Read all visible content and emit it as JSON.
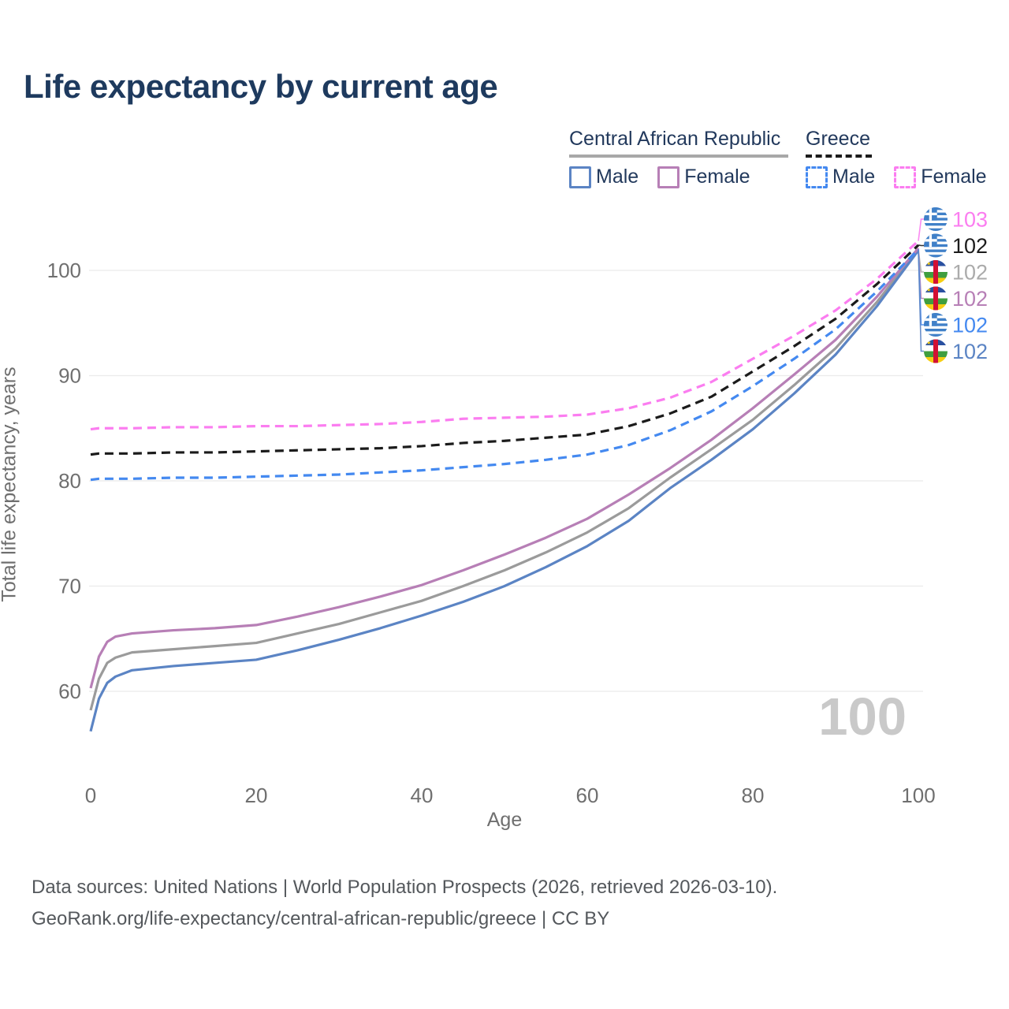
{
  "title": "Life expectancy by current age",
  "watermark": "100",
  "legend": {
    "groups": [
      {
        "country": "Central African Republic",
        "line_style": "solid",
        "underline_color": "#a8a8a8",
        "items": [
          {
            "label": "Male",
            "color": "#5b84c4"
          },
          {
            "label": "Female",
            "color": "#b77fb6"
          }
        ]
      },
      {
        "country": "Greece",
        "line_style": "dashed",
        "underline_color": "#1b1b1b",
        "items": [
          {
            "label": "Male",
            "color": "#4489f0"
          },
          {
            "label": "Female",
            "color": "#fb7df0"
          }
        ]
      }
    ]
  },
  "footer": {
    "line1": "Data sources: United Nations | World Population Prospects (2026, retrieved 2026-03-10).",
    "line2": "GeoRank.org/life-expectancy/central-african-republic/greece | CC BY"
  },
  "chart_data": {
    "type": "line",
    "title": "Life expectancy by current age",
    "xlabel": "Age",
    "ylabel": "Total life expectancy, years",
    "xlim": [
      0,
      100
    ],
    "ylim": [
      54,
      106
    ],
    "x_ticks": [
      0,
      20,
      40,
      60,
      80,
      100
    ],
    "y_ticks": [
      60,
      70,
      80,
      90,
      100
    ],
    "grid": "horizontal",
    "legend_position": "top-right",
    "x": [
      0,
      1,
      2,
      3,
      5,
      10,
      15,
      20,
      25,
      30,
      35,
      40,
      45,
      50,
      55,
      60,
      65,
      70,
      75,
      80,
      85,
      90,
      95,
      100
    ],
    "series": [
      {
        "id": "caf-total",
        "name": "Central African Republic — Total",
        "country": "Central African Republic",
        "sex": "both",
        "style": "solid",
        "color": "#9b9b9b",
        "values": [
          58.2,
          61.2,
          62.7,
          63.2,
          63.7,
          64.0,
          64.3,
          64.6,
          65.5,
          66.4,
          67.5,
          68.6,
          70.0,
          71.5,
          73.2,
          75.1,
          77.4,
          80.3,
          83.0,
          85.8,
          89.1,
          92.6,
          97.0,
          102.0
        ]
      },
      {
        "id": "caf-male",
        "name": "Central African Republic — Male",
        "country": "Central African Republic",
        "sex": "male",
        "style": "solid",
        "color": "#5b84c4",
        "values": [
          56.2,
          59.3,
          60.8,
          61.4,
          62.0,
          62.4,
          62.7,
          63.0,
          63.9,
          64.9,
          66.0,
          67.2,
          68.5,
          70.0,
          71.8,
          73.8,
          76.2,
          79.3,
          82.0,
          84.9,
          88.3,
          92.0,
          96.6,
          101.9
        ]
      },
      {
        "id": "caf-female",
        "name": "Central African Republic — Female",
        "country": "Central African Republic",
        "sex": "female",
        "style": "solid",
        "color": "#b77fb6",
        "values": [
          60.3,
          63.3,
          64.7,
          65.2,
          65.5,
          65.8,
          66.0,
          66.3,
          67.1,
          68.0,
          69.0,
          70.1,
          71.5,
          73.0,
          74.6,
          76.4,
          78.7,
          81.2,
          83.9,
          86.9,
          90.1,
          93.4,
          97.5,
          102.1
        ]
      },
      {
        "id": "grc-male",
        "name": "Greece — Male",
        "country": "Greece",
        "sex": "male",
        "style": "dashed",
        "color": "#4489f0",
        "values": [
          80.1,
          80.2,
          80.2,
          80.2,
          80.2,
          80.3,
          80.3,
          80.4,
          80.5,
          80.6,
          80.8,
          81.0,
          81.3,
          81.6,
          82.0,
          82.5,
          83.4,
          84.8,
          86.6,
          89.0,
          91.6,
          94.4,
          98.0,
          102.0
        ]
      },
      {
        "id": "grc-total",
        "name": "Greece — Total",
        "country": "Greece",
        "sex": "both",
        "style": "dashed",
        "color": "#1b1b1b",
        "values": [
          82.5,
          82.6,
          82.6,
          82.6,
          82.6,
          82.7,
          82.7,
          82.8,
          82.9,
          83.0,
          83.1,
          83.3,
          83.6,
          83.8,
          84.1,
          84.4,
          85.2,
          86.4,
          88.0,
          90.4,
          92.8,
          95.4,
          98.7,
          102.4
        ]
      },
      {
        "id": "grc-female",
        "name": "Greece — Female",
        "country": "Greece",
        "sex": "female",
        "style": "dashed",
        "color": "#fb7df0",
        "values": [
          84.9,
          85.0,
          85.0,
          85.0,
          85.0,
          85.1,
          85.1,
          85.2,
          85.2,
          85.3,
          85.4,
          85.6,
          85.9,
          86.0,
          86.1,
          86.3,
          86.9,
          87.9,
          89.4,
          91.6,
          93.8,
          96.2,
          99.2,
          102.8
        ]
      }
    ],
    "end_labels": [
      {
        "series_id": "grc-female",
        "flag": "greece",
        "text": "103",
        "color": "#fb7df0"
      },
      {
        "series_id": "grc-total",
        "flag": "greece",
        "text": "102",
        "color": "#1c1c1c"
      },
      {
        "series_id": "caf-total",
        "flag": "car",
        "text": "102",
        "color": "#ababab"
      },
      {
        "series_id": "caf-female",
        "flag": "car",
        "text": "102",
        "color": "#b77fb6"
      },
      {
        "series_id": "grc-male",
        "flag": "greece",
        "text": "102",
        "color": "#4489f0"
      },
      {
        "series_id": "caf-male",
        "flag": "car",
        "text": "102",
        "color": "#5b84c4"
      }
    ]
  }
}
